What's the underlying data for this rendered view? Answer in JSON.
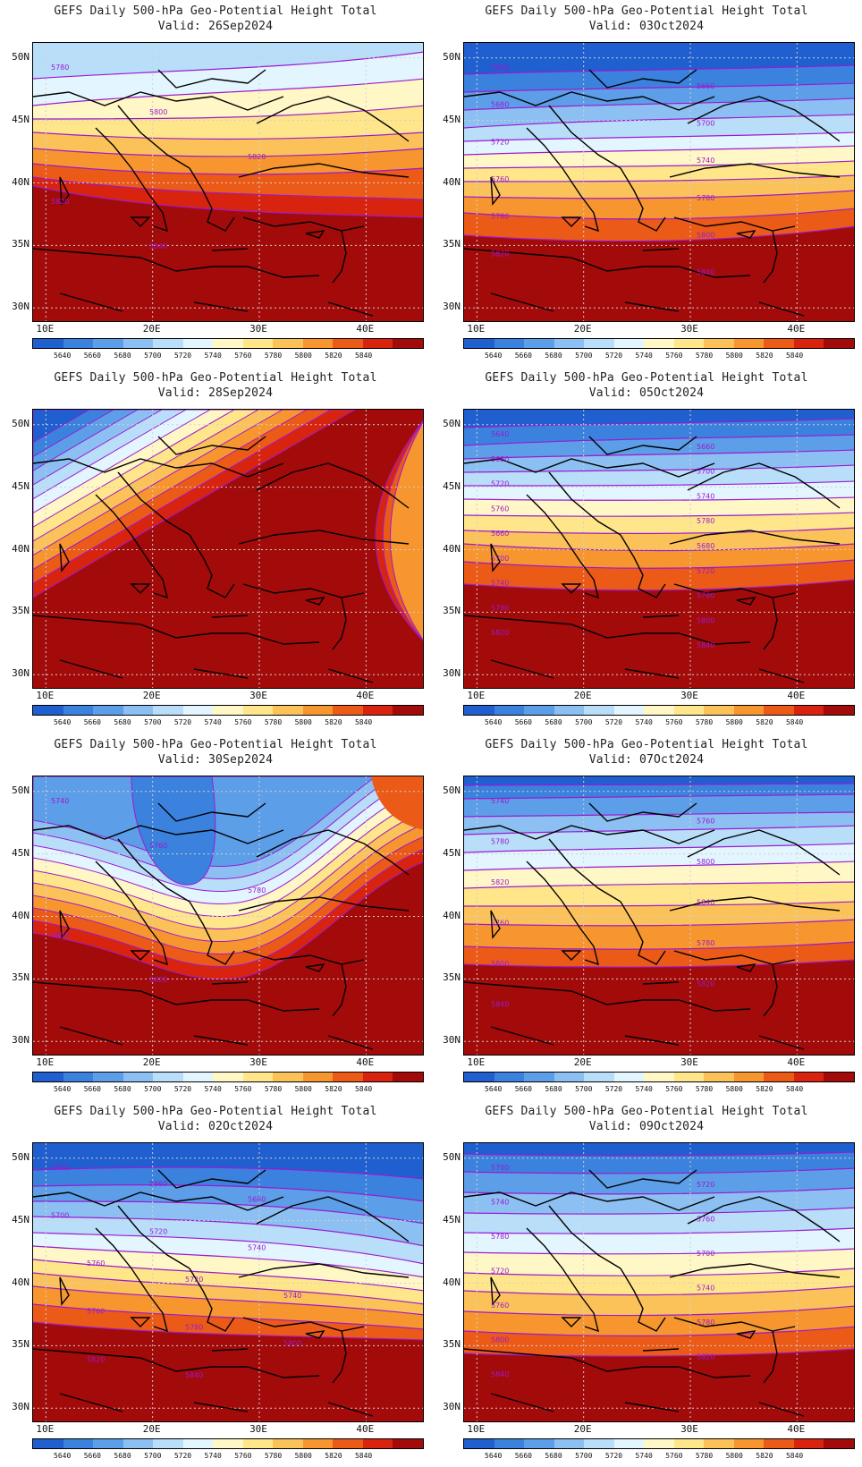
{
  "title": "GEFS Daily 500-hPa Geo-Potential Height Total",
  "valid_prefix": "Valid: ",
  "lat_ticks": [
    "50N",
    "45N",
    "40N",
    "35N",
    "30N"
  ],
  "lon_ticks": [
    "10E",
    "20E",
    "30E",
    "40E"
  ],
  "colorbar": {
    "levels": [
      "5640",
      "5660",
      "5680",
      "5700",
      "5720",
      "5740",
      "5760",
      "5780",
      "5800",
      "5820",
      "5840"
    ],
    "colors": [
      "#1f5fcf",
      "#3a82dd",
      "#5c9ee8",
      "#8dc0f2",
      "#b9defa",
      "#e3f6ff",
      "#fff7c6",
      "#ffe68a",
      "#fcc25a",
      "#f7962e",
      "#ec5a17",
      "#d8230f",
      "#a30a0a"
    ]
  },
  "contour_color": "#9b1bd1",
  "panels": [
    {
      "valid": "26Sep2024",
      "labels": [
        "5780",
        "5800",
        "5820",
        "5820",
        "5840"
      ]
    },
    {
      "valid": "03Oct2024",
      "labels": [
        "5640",
        "5660",
        "5680",
        "5700",
        "5720",
        "5740",
        "5760",
        "5780",
        "5780",
        "5800",
        "5820",
        "5840"
      ]
    },
    {
      "valid": "28Sep2024",
      "labels": []
    },
    {
      "valid": "05Oct2024",
      "labels": [
        "5640",
        "5660",
        "5680",
        "5700",
        "5720",
        "5740",
        "5760",
        "5780",
        "5660",
        "5680",
        "5700",
        "5720",
        "5740",
        "5760",
        "5780",
        "5800",
        "5820",
        "5840"
      ]
    },
    {
      "valid": "30Sep2024",
      "labels": [
        "5740",
        "5760",
        "5780",
        "5800",
        "5820"
      ]
    },
    {
      "valid": "07Oct2024",
      "labels": [
        "5740",
        "5760",
        "5780",
        "5800",
        "5820",
        "5840",
        "5760",
        "5780",
        "5800",
        "5820",
        "5840"
      ]
    },
    {
      "valid": "02Oct2024",
      "labels": [
        "5640",
        "5660",
        "5680",
        "5700",
        "5720",
        "5740",
        "5760",
        "5720",
        "5740",
        "5760",
        "5780",
        "5800",
        "5820",
        "5840"
      ]
    },
    {
      "valid": "09Oct2024",
      "labels": [
        "5700",
        "5720",
        "5740",
        "5760",
        "5780",
        "5700",
        "5720",
        "5740",
        "5760",
        "5780",
        "5800",
        "5820",
        "5840"
      ]
    }
  ]
}
